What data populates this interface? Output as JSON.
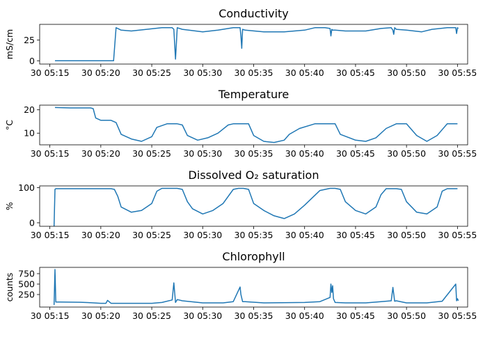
{
  "chart_data": [
    {
      "type": "line",
      "title": "Conductivity",
      "ylabel": "mS/cm",
      "xlabel": "",
      "x_range": [
        "05:14",
        "05:56"
      ],
      "ylim": [
        -4,
        44
      ],
      "yticks": [
        0,
        25
      ],
      "xtick_values": [
        "05:15",
        "05:20",
        "05:25",
        "05:30",
        "05:35",
        "05:40",
        "05:45",
        "05:50",
        "05:55"
      ],
      "xtick_labels": [
        "30 05:15",
        "30 05:20",
        "30 05:25",
        "30 05:30",
        "30 05:35",
        "30 05:40",
        "30 05:45",
        "30 05:50",
        "30 05:55"
      ],
      "grid": false,
      "series": [
        {
          "x": [
            "05:15:30",
            "05:21:15",
            "05:21:30",
            "05:21:40",
            "05:22:00",
            "05:23:00",
            "05:24:30",
            "05:26:00",
            "05:27:00",
            "05:27:10",
            "05:27:20",
            "05:27:30",
            "05:28:00",
            "05:30:00",
            "05:31:30",
            "05:33:00",
            "05:33:40",
            "05:33:45",
            "05:33:50",
            "05:33:55",
            "05:34:10",
            "05:36:00",
            "05:38:00",
            "05:40:00",
            "05:41:00",
            "05:42:00",
            "05:42:30",
            "05:42:35",
            "05:42:40",
            "05:42:45",
            "05:43:00",
            "05:44:00",
            "05:46:00",
            "05:47:30",
            "05:48:30",
            "05:48:40",
            "05:48:45",
            "05:48:50",
            "05:49:00",
            "05:50:00",
            "05:51:30",
            "05:52:30",
            "05:54:00",
            "05:54:50",
            "05:54:55",
            "05:55:00",
            "05:55:05"
          ],
          "y": [
            0,
            0,
            40,
            39,
            37,
            36,
            38,
            40,
            40,
            38,
            2,
            40,
            38,
            35,
            37,
            40,
            40,
            30,
            15,
            38,
            37,
            35,
            35,
            37,
            40,
            40,
            39,
            30,
            38,
            37,
            37,
            36,
            36,
            39,
            40,
            37,
            32,
            40,
            38,
            37,
            35,
            38,
            40,
            40,
            33,
            40,
            39
          ]
        }
      ]
    },
    {
      "type": "line",
      "title": "Temperature",
      "ylabel": "°C",
      "xlabel": "",
      "x_range": [
        "05:14",
        "05:56"
      ],
      "ylim": [
        5,
        22
      ],
      "yticks": [
        10,
        20
      ],
      "xtick_values": [
        "05:15",
        "05:20",
        "05:25",
        "05:30",
        "05:35",
        "05:40",
        "05:45",
        "05:50",
        "05:55"
      ],
      "xtick_labels": [
        "30 05:15",
        "30 05:20",
        "30 05:25",
        "30 05:30",
        "30 05:35",
        "30 05:40",
        "30 05:45",
        "30 05:50",
        "30 05:55"
      ],
      "grid": false,
      "series": [
        {
          "x": [
            "05:15:30",
            "05:17:00",
            "05:19:00",
            "05:19:15",
            "05:19:30",
            "05:20:00",
            "05:21:00",
            "05:21:30",
            "05:22:00",
            "05:23:00",
            "05:24:00",
            "05:25:00",
            "05:25:30",
            "05:26:30",
            "05:27:30",
            "05:28:00",
            "05:28:30",
            "05:29:30",
            "05:30:30",
            "05:31:30",
            "05:32:30",
            "05:33:00",
            "05:34:00",
            "05:34:30",
            "05:35:00",
            "05:36:00",
            "05:37:00",
            "05:38:00",
            "05:38:30",
            "05:39:30",
            "05:41:00",
            "05:42:30",
            "05:43:00",
            "05:43:30",
            "05:45:00",
            "05:46:00",
            "05:47:00",
            "05:48:00",
            "05:49:00",
            "05:49:30",
            "05:50:00",
            "05:51:00",
            "05:52:00",
            "05:53:00",
            "05:54:00",
            "05:55:00"
          ],
          "y": [
            21,
            20.8,
            20.8,
            20.5,
            16.5,
            15.5,
            15.5,
            14.5,
            9.5,
            7.5,
            6.5,
            8.5,
            12.5,
            14,
            14,
            13.5,
            9,
            7,
            8,
            10,
            13.5,
            14,
            14,
            14,
            9,
            6.5,
            6,
            7,
            9.5,
            12,
            14,
            14,
            14,
            9.5,
            7,
            6.5,
            8,
            12,
            14,
            14,
            14,
            9,
            6.5,
            9,
            14,
            14
          ]
        }
      ]
    },
    {
      "type": "line",
      "title": "Dissolved O₂ saturation",
      "ylabel": "%",
      "xlabel": "",
      "x_range": [
        "05:14",
        "05:56"
      ],
      "ylim": [
        -10,
        105
      ],
      "yticks": [
        0,
        100
      ],
      "xtick_values": [
        "05:15",
        "05:20",
        "05:25",
        "05:30",
        "05:35",
        "05:40",
        "05:45",
        "05:50",
        "05:55"
      ],
      "xtick_labels": [
        "30 05:15",
        "30 05:20",
        "30 05:25",
        "30 05:30",
        "30 05:35",
        "30 05:40",
        "30 05:45",
        "30 05:50",
        "30 05:55"
      ],
      "grid": false,
      "series": [
        {
          "x": [
            "05:15:25",
            "05:15:30",
            "05:15:35",
            "05:16:00",
            "05:18:00",
            "05:20:00",
            "05:21:00",
            "05:21:20",
            "05:21:40",
            "05:22:00",
            "05:23:00",
            "05:24:00",
            "05:24:30",
            "05:25:00",
            "05:25:30",
            "05:26:00",
            "05:27:30",
            "05:28:00",
            "05:28:30",
            "05:29:00",
            "05:30:00",
            "05:31:00",
            "05:32:00",
            "05:33:00",
            "05:33:30",
            "05:34:00",
            "05:34:30",
            "05:35:00",
            "05:36:00",
            "05:37:00",
            "05:38:00",
            "05:39:00",
            "05:40:00",
            "05:41:30",
            "05:42:30",
            "05:43:00",
            "05:43:30",
            "05:44:00",
            "05:45:00",
            "05:46:00",
            "05:47:00",
            "05:47:30",
            "05:48:00",
            "05:49:00",
            "05:49:30",
            "05:50:00",
            "05:51:00",
            "05:52:00",
            "05:53:00",
            "05:53:30",
            "05:54:00",
            "05:55:00"
          ],
          "y": [
            -10,
            95,
            97,
            97,
            97,
            97,
            97,
            95,
            75,
            45,
            30,
            35,
            45,
            55,
            90,
            98,
            98,
            95,
            60,
            40,
            25,
            35,
            55,
            95,
            98,
            98,
            95,
            55,
            35,
            20,
            12,
            25,
            50,
            92,
            98,
            98,
            95,
            60,
            35,
            25,
            45,
            80,
            97,
            97,
            95,
            60,
            30,
            25,
            45,
            90,
            97,
            97
          ]
        }
      ]
    },
    {
      "type": "line",
      "title": "Chlorophyll",
      "ylabel": "counts",
      "xlabel": "",
      "x_range": [
        "05:14",
        "05:56"
      ],
      "ylim": [
        -50,
        900
      ],
      "yticks": [
        250,
        500,
        750
      ],
      "xtick_values": [
        "05:15",
        "05:20",
        "05:25",
        "05:30",
        "05:35",
        "05:40",
        "05:45",
        "05:50",
        "05:55"
      ],
      "xtick_labels": [
        "30 05:15",
        "30 05:20",
        "30 05:25",
        "30 05:30",
        "30 05:35",
        "30 05:40",
        "30 05:45",
        "30 05:50",
        "30 05:55"
      ],
      "grid": false,
      "series": [
        {
          "x": [
            "05:15:25",
            "05:15:30",
            "05:15:35",
            "05:16:00",
            "05:18:00",
            "05:19:00",
            "05:20:00",
            "05:20:30",
            "05:20:40",
            "05:21:00",
            "05:24:00",
            "05:25:00",
            "05:26:00",
            "05:27:00",
            "05:27:10",
            "05:27:20",
            "05:27:30",
            "05:28:00",
            "05:30:00",
            "05:32:00",
            "05:33:00",
            "05:33:40",
            "05:33:45",
            "05:33:55",
            "05:34:10",
            "05:36:00",
            "05:40:00",
            "05:41:30",
            "05:42:30",
            "05:42:35",
            "05:42:40",
            "05:42:45",
            "05:42:50",
            "05:43:00",
            "05:44:00",
            "05:46:00",
            "05:47:30",
            "05:48:30",
            "05:48:40",
            "05:48:50",
            "05:49:00",
            "05:50:00",
            "05:52:00",
            "05:53:30",
            "05:54:50",
            "05:54:55",
            "05:55:00",
            "05:55:05"
          ],
          "y": [
            0,
            850,
            70,
            70,
            65,
            55,
            40,
            40,
            110,
            40,
            40,
            40,
            60,
            120,
            530,
            60,
            130,
            100,
            50,
            50,
            80,
            430,
            250,
            80,
            80,
            50,
            60,
            80,
            180,
            500,
            300,
            460,
            150,
            60,
            50,
            50,
            80,
            100,
            420,
            90,
            100,
            50,
            50,
            90,
            500,
            100,
            150,
            100
          ]
        }
      ]
    }
  ]
}
